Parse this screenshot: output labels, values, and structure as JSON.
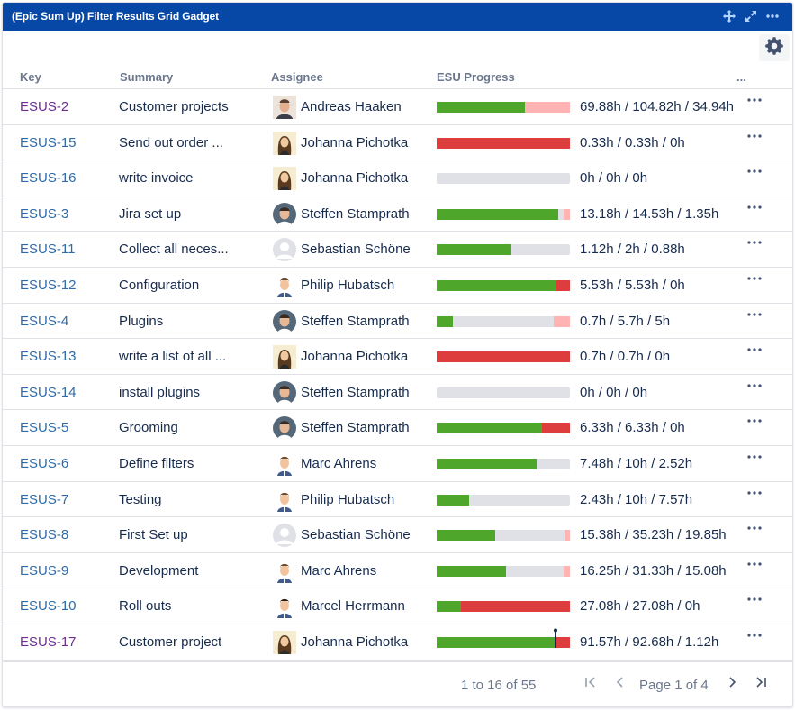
{
  "gadget": {
    "title": "(Epic Sum Up) Filter Results Grid Gadget",
    "icons": [
      "move-icon",
      "expand-icon",
      "more-icon"
    ],
    "settings_icon": "gear-icon"
  },
  "table": {
    "columns": [
      "Key",
      "Summary",
      "Assignee",
      "ESU Progress",
      "..."
    ],
    "rows": [
      {
        "key": "ESUS-2",
        "visited": true,
        "summary": "Customer projects",
        "assignee": "Andreas Haaken",
        "avatar": "man-photo",
        "progress": {
          "green": 0.66,
          "pink": 0.34,
          "red": 0,
          "grey": 0
        },
        "text": "69.88h / 104.82h / 34.94h"
      },
      {
        "key": "ESUS-15",
        "visited": false,
        "summary": "Send out order ...",
        "assignee": "Johanna Pichotka",
        "avatar": "woman-photo",
        "progress": {
          "green": 0,
          "pink": 0,
          "red": 1,
          "grey": 0
        },
        "text": "0.33h / 0.33h / 0h"
      },
      {
        "key": "ESUS-16",
        "visited": false,
        "summary": "write invoice",
        "assignee": "Johanna Pichotka",
        "avatar": "woman-photo",
        "progress": {
          "green": 0,
          "pink": 0,
          "red": 0,
          "grey": 1
        },
        "text": "0h / 0h / 0h"
      },
      {
        "key": "ESUS-3",
        "visited": false,
        "summary": "Jira set up",
        "assignee": "Steffen Stamprath",
        "avatar": "man-round-photo",
        "progress": {
          "green": 0.91,
          "pink": 0.05,
          "red": 0,
          "grey": 0.04
        },
        "text": "13.18h / 14.53h / 1.35h"
      },
      {
        "key": "ESUS-11",
        "visited": false,
        "summary": "Collect all neces...",
        "assignee": "Sebastian Schöne",
        "avatar": "default-avatar",
        "progress": {
          "green": 0.56,
          "pink": 0,
          "red": 0,
          "grey": 0.44
        },
        "text": "1.12h / 2h / 0.88h"
      },
      {
        "key": "ESUS-12",
        "visited": false,
        "summary": "Configuration",
        "assignee": "Philip Hubatsch",
        "avatar": "man-cartoon",
        "progress": {
          "green": 0.9,
          "pink": 0,
          "red": 0.1,
          "grey": 0
        },
        "text": "5.53h / 5.53h / 0h"
      },
      {
        "key": "ESUS-4",
        "visited": false,
        "summary": "Plugins",
        "assignee": "Steffen Stamprath",
        "avatar": "man-round-photo",
        "progress": {
          "green": 0.12,
          "pink": 0.12,
          "red": 0,
          "grey": 0.76
        },
        "text": "0.7h / 5.7h / 5h"
      },
      {
        "key": "ESUS-13",
        "visited": false,
        "summary": "write a list of all ...",
        "assignee": "Johanna Pichotka",
        "avatar": "woman-photo",
        "progress": {
          "green": 0,
          "pink": 0,
          "red": 1,
          "grey": 0
        },
        "text": "0.7h / 0.7h / 0h"
      },
      {
        "key": "ESUS-14",
        "visited": false,
        "summary": "install plugins",
        "assignee": "Steffen Stamprath",
        "avatar": "man-round-photo",
        "progress": {
          "green": 0,
          "pink": 0,
          "red": 0,
          "grey": 1
        },
        "text": "0h / 0h / 0h"
      },
      {
        "key": "ESUS-5",
        "visited": false,
        "summary": "Grooming",
        "assignee": "Steffen Stamprath",
        "avatar": "man-round-photo",
        "progress": {
          "green": 0.79,
          "pink": 0,
          "red": 0.21,
          "grey": 0
        },
        "text": "6.33h / 6.33h / 0h"
      },
      {
        "key": "ESUS-6",
        "visited": false,
        "summary": "Define filters",
        "assignee": "Marc Ahrens",
        "avatar": "man-cartoon",
        "progress": {
          "green": 0.75,
          "pink": 0,
          "red": 0,
          "grey": 0.25
        },
        "text": "7.48h / 10h / 2.52h"
      },
      {
        "key": "ESUS-7",
        "visited": false,
        "summary": "Testing",
        "assignee": "Philip Hubatsch",
        "avatar": "man-cartoon",
        "progress": {
          "green": 0.24,
          "pink": 0,
          "red": 0,
          "grey": 0.76
        },
        "text": "2.43h / 10h / 7.57h"
      },
      {
        "key": "ESUS-8",
        "visited": false,
        "summary": "First Set up",
        "assignee": "Sebastian Schöne",
        "avatar": "default-avatar",
        "progress": {
          "green": 0.44,
          "pink": 0.04,
          "red": 0,
          "grey": 0.52
        },
        "text": "15.38h / 35.23h / 19.85h"
      },
      {
        "key": "ESUS-9",
        "visited": false,
        "summary": "Development",
        "assignee": "Marc Ahrens",
        "avatar": "man-cartoon",
        "progress": {
          "green": 0.52,
          "pink": 0.05,
          "red": 0,
          "grey": 0.43
        },
        "text": "16.25h / 31.33h / 15.08h"
      },
      {
        "key": "ESUS-10",
        "visited": false,
        "summary": "Roll outs",
        "assignee": "Marcel Herrmann",
        "avatar": "man-cartoon-dark",
        "progress": {
          "green": 0.18,
          "pink": 0,
          "red": 0.82,
          "grey": 0
        },
        "text": "27.08h / 27.08h / 0h"
      },
      {
        "key": "ESUS-17",
        "visited": true,
        "summary": "Customer project",
        "assignee": "Johanna Pichotka",
        "avatar": "woman-photo",
        "progress": {
          "green": 0.9,
          "pink": 0,
          "red": 0.1,
          "grey": 0
        },
        "text": "91.57h / 92.68h / 1.12h",
        "marker": true
      }
    ]
  },
  "pager": {
    "summary": "1 to 16 of 55",
    "page": "Page 1 of 4",
    "first_icon": "first-page-icon",
    "prev_icon": "prev-page-icon",
    "next_icon": "next-page-icon",
    "last_icon": "last-page-icon"
  },
  "colors": {
    "titlebar": "#0747a6",
    "done": "#4ea72a",
    "over": "#de3d3d",
    "remaining_over": "#ffb3b3",
    "remaining": "#dfe1e6",
    "link": "#2e6ba8",
    "visited": "#6c2e8c"
  }
}
